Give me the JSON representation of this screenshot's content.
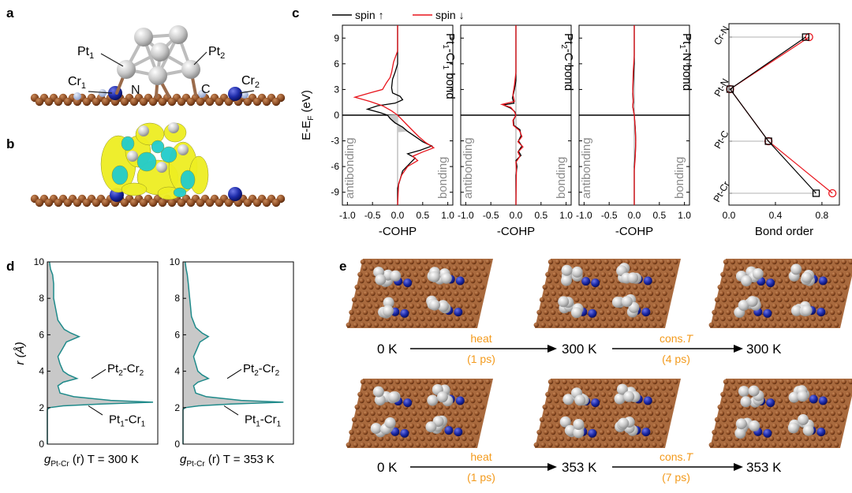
{
  "panels": {
    "a": {
      "label": "a",
      "atoms": [
        "Pt1",
        "Pt2",
        "Cr1",
        "Cr2",
        "N",
        "C"
      ]
    },
    "b": {
      "label": "b"
    },
    "c": {
      "label": "c",
      "legend": [
        "spin ↑",
        "spin ↓"
      ],
      "ylabel": "E-E",
      "ylabel_sub": "F",
      "ylabel_unit": " (eV)",
      "yticks": [
        "9",
        "6",
        "3",
        "0",
        "-3",
        "-6",
        "-9"
      ],
      "xticks": [
        "-1.0",
        "-0.5",
        "0.0",
        "0.5",
        "1.0"
      ],
      "xlabel": "-COHP",
      "antibonding": "antibonding",
      "bonding": "bonding",
      "bond_titles": [
        {
          "main": "Pt",
          "sub1": "1",
          "mid": "-Cr",
          "sub2": "1",
          "end": " bond"
        },
        {
          "main": "Pt",
          "sub1": "2",
          "mid": "-C",
          "sub2": "",
          "end": " bond"
        },
        {
          "main": "Pt",
          "sub1": "1",
          "mid": "-N",
          "sub2": "",
          "end": " bond"
        }
      ],
      "bond_order": {
        "categories": [
          "Cr-N",
          "Pt-N",
          "Pt-C",
          "Pt-Cr"
        ],
        "xticks": [
          "0.0",
          "0.4",
          "0.8"
        ],
        "xlabel": "Bond order"
      }
    },
    "d": {
      "label": "d",
      "ylabel": "r (Å)",
      "yticks": [
        "10",
        "8",
        "6",
        "4",
        "2",
        "0"
      ],
      "annot_upper": {
        "main": "Pt",
        "sub1": "2",
        "mid": "-Cr",
        "sub2": "2"
      },
      "annot_lower": {
        "main": "Pt",
        "sub1": "1",
        "mid": "-Cr",
        "sub2": "1"
      },
      "captions": [
        "T = 300 K",
        "T = 353 K"
      ],
      "caption_g": "g",
      "caption_sub": "Pt-Cr",
      "caption_r": " (r) "
    },
    "e": {
      "label": "e",
      "row1": {
        "t0": "0 K",
        "t1": "300 K",
        "t2": "300 K",
        "a1_top": "heat",
        "a1_bot": "(1 ps)",
        "a2_top": "cons.",
        "a2_T": "T",
        "a2_bot": "(4 ps)"
      },
      "row2": {
        "t0": "0 K",
        "t1": "353 K",
        "t2": "353 K",
        "a1_top": "heat",
        "a1_bot": "(1 ps)",
        "a2_top": "cons.",
        "a2_T": "T",
        "a2_bot": "(7 ps)"
      }
    }
  },
  "colors": {
    "spin_up": "#000000",
    "spin_down": "#e8141c",
    "rdf_line": "#1f8a8a",
    "rdf_fill": "#c8c8c8",
    "carbon": "#8a4a22",
    "platinum": "#cfcfcf",
    "chromium": "#1c2aa8",
    "nitrogen": "#9fb0d8",
    "iso_yellow": "#eeee22",
    "iso_cyan": "#22cccc",
    "arrow_text": "#f39a1c"
  },
  "chart_data": [
    {
      "type": "line",
      "title": "Pt1-Cr1 bond",
      "xlabel": "-COHP",
      "ylabel": "E-EF (eV)",
      "xlim": [
        -1.1,
        1.1
      ],
      "ylim": [
        -10.5,
        10.5
      ],
      "series": [
        {
          "name": "spin ↑",
          "points": [
            [
              0,
              10.5
            ],
            [
              0,
              6
            ],
            [
              -0.05,
              5
            ],
            [
              -0.1,
              4.2
            ],
            [
              -0.12,
              3.2
            ],
            [
              -0.1,
              2.6
            ],
            [
              0.05,
              2.2
            ],
            [
              0.1,
              1.8
            ],
            [
              -0.05,
              1.4
            ],
            [
              -0.4,
              1.1
            ],
            [
              -0.6,
              0.7
            ],
            [
              -0.35,
              0.3
            ],
            [
              -0.2,
              0
            ],
            [
              -0.15,
              -0.4
            ],
            [
              -0.05,
              -0.9
            ],
            [
              0.1,
              -1.4
            ],
            [
              0.2,
              -1.9
            ],
            [
              0.35,
              -2.5
            ],
            [
              0.5,
              -3.1
            ],
            [
              0.68,
              -3.6
            ],
            [
              0.45,
              -4.1
            ],
            [
              0.2,
              -4.5
            ],
            [
              0.35,
              -5.0
            ],
            [
              0.25,
              -5.6
            ],
            [
              0.1,
              -6.5
            ],
            [
              0.05,
              -7.5
            ],
            [
              0,
              -8.5
            ],
            [
              0,
              -10.5
            ]
          ]
        },
        {
          "name": "spin ↓",
          "points": [
            [
              0,
              10.5
            ],
            [
              0,
              7.5
            ],
            [
              -0.08,
              6.2
            ],
            [
              -0.12,
              5.0
            ],
            [
              -0.15,
              4.4
            ],
            [
              -0.22,
              3.8
            ],
            [
              -0.3,
              3.0
            ],
            [
              -0.55,
              2.6
            ],
            [
              -0.85,
              2.1
            ],
            [
              -0.55,
              1.6
            ],
            [
              -0.3,
              1.1
            ],
            [
              -0.12,
              0.5
            ],
            [
              0,
              0
            ],
            [
              0.1,
              -0.6
            ],
            [
              0.2,
              -1.2
            ],
            [
              0.3,
              -1.8
            ],
            [
              0.42,
              -2.5
            ],
            [
              0.56,
              -3.2
            ],
            [
              0.72,
              -3.8
            ],
            [
              0.5,
              -4.3
            ],
            [
              0.3,
              -4.8
            ],
            [
              0.4,
              -5.3
            ],
            [
              0.2,
              -6.0
            ],
            [
              0.08,
              -7.0
            ],
            [
              0.02,
              -8.0
            ],
            [
              0,
              -10.5
            ]
          ]
        }
      ]
    },
    {
      "type": "line",
      "title": "Pt2-C bond",
      "xlabel": "-COHP",
      "ylabel": "E-EF (eV)",
      "xlim": [
        -1.1,
        1.1
      ],
      "ylim": [
        -10.5,
        10.5
      ],
      "series": [
        {
          "name": "spin ↑",
          "points": [
            [
              0,
              10.5
            ],
            [
              0,
              4
            ],
            [
              -0.03,
              3
            ],
            [
              -0.07,
              2
            ],
            [
              -0.04,
              1.4
            ],
            [
              -0.25,
              1.2
            ],
            [
              -0.1,
              0.8
            ],
            [
              -0.02,
              0.4
            ],
            [
              0,
              0
            ],
            [
              -0.05,
              -0.6
            ],
            [
              -0.04,
              -1.2
            ],
            [
              0.08,
              -1.7
            ],
            [
              0.1,
              -2.4
            ],
            [
              0.05,
              -3
            ],
            [
              0.12,
              -3.6
            ],
            [
              0.05,
              -4.2
            ],
            [
              0.1,
              -4.7
            ],
            [
              0,
              -5.3
            ],
            [
              0.02,
              -6
            ],
            [
              0,
              -7
            ],
            [
              0,
              -10.5
            ]
          ]
        },
        {
          "name": "spin ↓",
          "points": [
            [
              0,
              10.5
            ],
            [
              0,
              7
            ],
            [
              0,
              5
            ],
            [
              -0.03,
              3.5
            ],
            [
              -0.06,
              2.4
            ],
            [
              -0.03,
              1.6
            ],
            [
              -0.28,
              1.25
            ],
            [
              -0.1,
              0.9
            ],
            [
              -0.03,
              0.4
            ],
            [
              0,
              0
            ],
            [
              -0.06,
              -0.6
            ],
            [
              -0.05,
              -1.2
            ],
            [
              0.07,
              -1.8
            ],
            [
              0.12,
              -2.5
            ],
            [
              0.04,
              -3.1
            ],
            [
              0.14,
              -3.7
            ],
            [
              0.04,
              -4.3
            ],
            [
              0.08,
              -4.8
            ],
            [
              0,
              -5.5
            ],
            [
              0.01,
              -6.5
            ],
            [
              0,
              -10.5
            ]
          ]
        }
      ]
    },
    {
      "type": "line",
      "title": "Pt1-N bond",
      "xlabel": "-COHP",
      "ylabel": "E-EF (eV)",
      "xlim": [
        -1.1,
        1.1
      ],
      "ylim": [
        -10.5,
        10.5
      ],
      "series": [
        {
          "name": "spin ↑",
          "points": [
            [
              0,
              10.5
            ],
            [
              0,
              6
            ],
            [
              -0.02,
              4
            ],
            [
              -0.03,
              2.5
            ],
            [
              -0.02,
              1.5
            ],
            [
              -0.03,
              1
            ],
            [
              0,
              0
            ],
            [
              0.02,
              -1.5
            ],
            [
              0.03,
              -3
            ],
            [
              0.02,
              -4.5
            ],
            [
              0,
              -6
            ],
            [
              0,
              -10.5
            ]
          ]
        },
        {
          "name": "spin ↓",
          "points": [
            [
              0,
              10.5
            ],
            [
              0,
              7
            ],
            [
              -0.02,
              5
            ],
            [
              -0.03,
              3
            ],
            [
              -0.02,
              1.8
            ],
            [
              -0.03,
              1.1
            ],
            [
              0,
              0
            ],
            [
              0.02,
              -1.7
            ],
            [
              0.03,
              -3.2
            ],
            [
              0.02,
              -4.8
            ],
            [
              0,
              -6.5
            ],
            [
              0,
              -10.5
            ]
          ]
        }
      ]
    },
    {
      "type": "line",
      "title": "",
      "xlabel": "Bond order",
      "xlim": [
        0,
        0.95
      ],
      "categories": [
        "Cr-N",
        "Pt-N",
        "Pt-C",
        "Pt-Cr"
      ],
      "series": [
        {
          "name": "spin ↑",
          "values": [
            0.66,
            0.01,
            0.34,
            0.75
          ]
        },
        {
          "name": "spin ↓",
          "values": [
            0.69,
            0.01,
            0.34,
            0.89
          ]
        }
      ]
    },
    {
      "type": "area",
      "title": "",
      "xlabel": "gPt-Cr (r) T = 300 K",
      "ylabel": "r (Å)",
      "ylim": [
        0,
        10
      ],
      "series": [
        {
          "name": "",
          "points": [
            [
              0,
              0
            ],
            [
              0,
              1.9
            ],
            [
              0.02,
              2.0
            ],
            [
              0.15,
              2.1
            ],
            [
              0.5,
              2.2
            ],
            [
              1.0,
              2.3
            ],
            [
              0.6,
              2.4
            ],
            [
              0.25,
              2.6
            ],
            [
              0.12,
              2.8
            ],
            [
              0.1,
              3.2
            ],
            [
              0.15,
              3.4
            ],
            [
              0.28,
              3.6
            ],
            [
              0.2,
              3.8
            ],
            [
              0.15,
              4.0
            ],
            [
              0.12,
              4.4
            ],
            [
              0.1,
              4.8
            ],
            [
              0.14,
              5.2
            ],
            [
              0.18,
              5.6
            ],
            [
              0.3,
              5.9
            ],
            [
              0.22,
              6.1
            ],
            [
              0.16,
              6.3
            ],
            [
              0.1,
              6.8
            ],
            [
              0.08,
              7.4
            ],
            [
              0.06,
              8.0
            ],
            [
              0.06,
              8.8
            ],
            [
              0.05,
              9.3
            ],
            [
              0.03,
              9.6
            ],
            [
              0.02,
              10
            ]
          ]
        }
      ]
    },
    {
      "type": "area",
      "title": "",
      "xlabel": "gPt-Cr (r) T = 353 K",
      "ylabel": "r (Å)",
      "ylim": [
        0,
        10
      ],
      "series": [
        {
          "name": "",
          "points": [
            [
              0,
              0
            ],
            [
              0,
              1.9
            ],
            [
              0.02,
              2.0
            ],
            [
              0.15,
              2.1
            ],
            [
              0.45,
              2.2
            ],
            [
              0.95,
              2.3
            ],
            [
              0.55,
              2.4
            ],
            [
              0.22,
              2.6
            ],
            [
              0.12,
              2.8
            ],
            [
              0.1,
              3.2
            ],
            [
              0.14,
              3.4
            ],
            [
              0.24,
              3.6
            ],
            [
              0.18,
              3.8
            ],
            [
              0.14,
              4.0
            ],
            [
              0.12,
              4.4
            ],
            [
              0.1,
              4.8
            ],
            [
              0.13,
              5.2
            ],
            [
              0.16,
              5.6
            ],
            [
              0.24,
              5.9
            ],
            [
              0.18,
              6.1
            ],
            [
              0.12,
              6.4
            ],
            [
              0.08,
              7.0
            ],
            [
              0.07,
              7.6
            ],
            [
              0.06,
              8.2
            ],
            [
              0.05,
              8.8
            ],
            [
              0.04,
              9.3
            ],
            [
              0.03,
              9.6
            ],
            [
              0.02,
              10
            ]
          ]
        }
      ]
    }
  ]
}
